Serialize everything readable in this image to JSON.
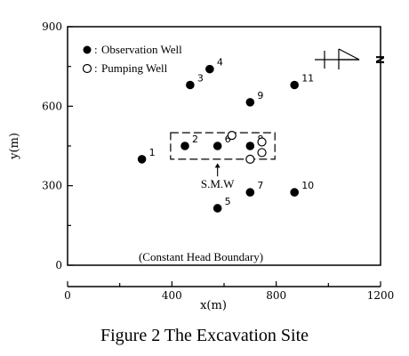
{
  "chart_data": {
    "type": "scatter",
    "xlabel": "x(m)",
    "ylabel": "y(m)",
    "xlim": [
      0,
      1200
    ],
    "ylim": [
      0,
      900
    ],
    "x_ticks": [
      "0",
      "400",
      "800",
      "1200"
    ],
    "y_ticks": [
      "0",
      "300",
      "600",
      "900"
    ],
    "legend": {
      "placement": "top-left",
      "observation_label": "Observation Well",
      "pumping_label": "Pumping Well"
    },
    "observation_wells": [
      {
        "id": "1",
        "x": 285,
        "y": 400
      },
      {
        "id": "2",
        "x": 450,
        "y": 450
      },
      {
        "id": "3",
        "x": 470,
        "y": 680
      },
      {
        "id": "4",
        "x": 545,
        "y": 740
      },
      {
        "id": "5",
        "x": 575,
        "y": 215
      },
      {
        "id": "6",
        "x": 575,
        "y": 450
      },
      {
        "id": "7",
        "x": 700,
        "y": 275
      },
      {
        "id": "8",
        "x": 700,
        "y": 450
      },
      {
        "id": "9",
        "x": 700,
        "y": 615
      },
      {
        "id": "10",
        "x": 870,
        "y": 275
      },
      {
        "id": "11",
        "x": 870,
        "y": 680
      }
    ],
    "pumping_wells": [
      {
        "x": 630,
        "y": 490
      },
      {
        "x": 745,
        "y": 465
      },
      {
        "x": 745,
        "y": 425
      },
      {
        "x": 700,
        "y": 400
      }
    ],
    "excavation_box": {
      "x0": 395,
      "x1": 795,
      "y0": 400,
      "y1": 500
    },
    "smw_label": "S.M.W",
    "smw_arrow": {
      "x": 575,
      "y_from": 335,
      "y_to": 385
    },
    "boundary_label": "(Constant Head Boundary)",
    "north_label": "N",
    "colors": {
      "ink": "#000000",
      "background": "#ffffff"
    }
  },
  "caption": "Figure 2  The Excavation Site"
}
